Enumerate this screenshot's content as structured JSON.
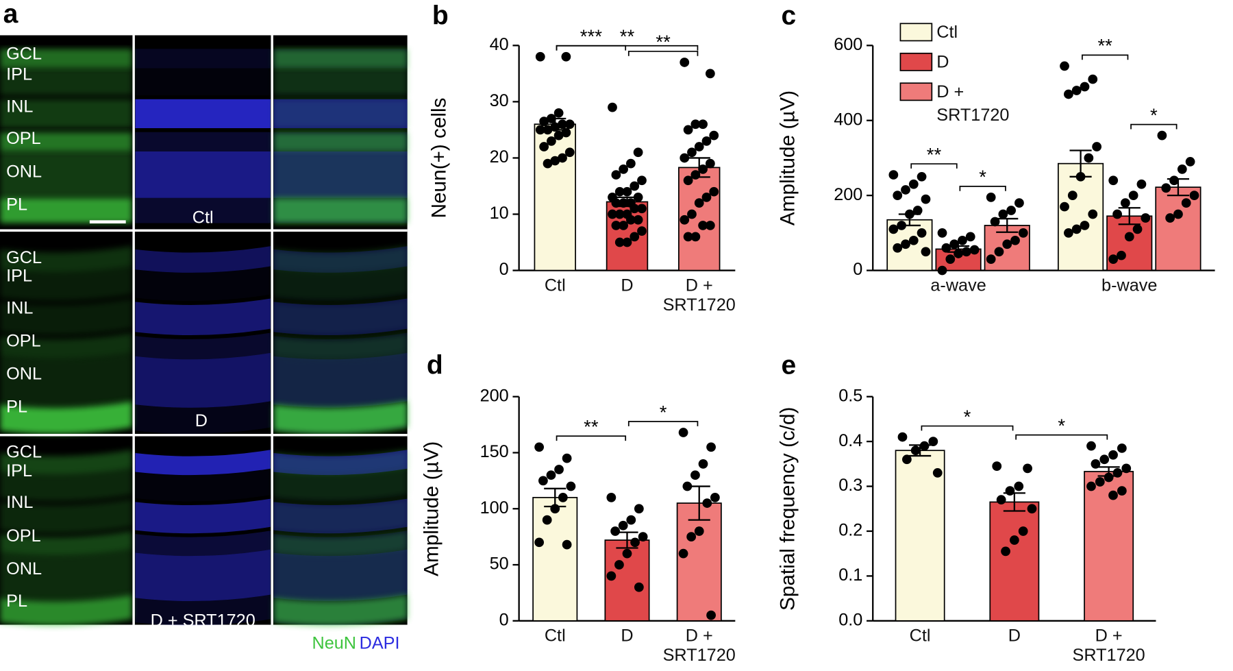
{
  "panel_a": {
    "letter": "a",
    "layers": [
      "GCL",
      "IPL",
      "INL",
      "OPL",
      "ONL",
      "PL"
    ],
    "conditions": [
      "Ctl",
      "D",
      "D + SRT1720"
    ],
    "stains": [
      "NeuN",
      "DAPI"
    ],
    "stain_colors": [
      "#3ec43e",
      "#2b2be0"
    ]
  },
  "chart_data": [
    {
      "type": "bar",
      "panel": "b",
      "ylabel": "Neun(+) cells",
      "categories": [
        "Ctl",
        "D",
        "D + SRT1720"
      ],
      "colors": [
        "#fbf8dc",
        "#e0484a",
        "#ef7b7a"
      ],
      "values": [
        26,
        12.2,
        18.3
      ],
      "errors": [
        1,
        0.8,
        1.7
      ],
      "points": [
        [
          38,
          38,
          28,
          27,
          26.5,
          26,
          26,
          25.5,
          25,
          25,
          24.5,
          24,
          23,
          22,
          21,
          20,
          19.5,
          19
        ],
        [
          29,
          21,
          19,
          18,
          17,
          16,
          15,
          14,
          14,
          13,
          13,
          12,
          12,
          12,
          11,
          11,
          10,
          10,
          10,
          9,
          9,
          8,
          8,
          7,
          6,
          5,
          5
        ],
        [
          37,
          35,
          26,
          26,
          25,
          24,
          23,
          22,
          21,
          20,
          19,
          18,
          17,
          16,
          14,
          13,
          12,
          10,
          9,
          8,
          8,
          6,
          6
        ]
      ],
      "ylim": [
        0,
        40
      ],
      "yticks": [
        0,
        10,
        20,
        30,
        40
      ],
      "annotations": [
        {
          "between": [
            "Ctl",
            "D"
          ],
          "label": "***"
        },
        {
          "between": [
            "D",
            "D + SRT1720"
          ],
          "label": "**"
        },
        {
          "between": [
            "Ctl",
            "D + SRT1720"
          ],
          "label": "**"
        }
      ]
    },
    {
      "type": "bar",
      "panel": "c",
      "ylabel": "Amplitude (µV)",
      "categories": [
        "a-wave",
        "b-wave"
      ],
      "series": [
        {
          "name": "Ctl",
          "color": "#fbf8dc",
          "values": [
            135,
            285
          ],
          "errors": [
            15,
            35
          ],
          "points": [
            [
              255,
              250,
              230,
              215,
              200,
              190,
              160,
              150,
              120,
              110,
              100,
              80,
              70,
              60,
              50
            ],
            [
              545,
              510,
              490,
              480,
              470,
              330,
              300,
              250,
              200,
              170,
              150,
              120,
              110,
              100
            ]
          ]
        },
        {
          "name": "D",
          "color": "#e0484a",
          "values": [
            57,
            145
          ],
          "errors": [
            8,
            22
          ],
          "points": [
            [
              100,
              90,
              80,
              70,
              60,
              55,
              50,
              45,
              30,
              0
            ],
            [
              240,
              230,
              200,
              180,
              150,
              140,
              110,
              90,
              40,
              30
            ]
          ]
        },
        {
          "name": "D + SRT1720",
          "color": "#ef7b7a",
          "values": [
            120,
            222
          ],
          "errors": [
            18,
            22
          ],
          "points": [
            [
              195,
              180,
              160,
              150,
              130,
              100,
              80,
              70,
              50,
              30
            ],
            [
              360,
              290,
              270,
              240,
              220,
              200,
              180,
              150,
              140
            ]
          ]
        }
      ],
      "ylim": [
        0,
        600
      ],
      "yticks": [
        0,
        200,
        400,
        600
      ],
      "annotations": [
        {
          "group": "a-wave",
          "between": [
            "Ctl",
            "D"
          ],
          "label": "**"
        },
        {
          "group": "a-wave",
          "between": [
            "D",
            "D + SRT1720"
          ],
          "label": "*"
        },
        {
          "group": "b-wave",
          "between": [
            "Ctl",
            "D"
          ],
          "label": "**"
        },
        {
          "group": "b-wave",
          "between": [
            "D",
            "D + SRT1720"
          ],
          "label": "*"
        }
      ]
    },
    {
      "type": "bar",
      "panel": "d",
      "ylabel": "Amplitude (µV)",
      "categories": [
        "Ctl",
        "D",
        "D + SRT1720"
      ],
      "colors": [
        "#fbf8dc",
        "#e0484a",
        "#ef7b7a"
      ],
      "values": [
        110,
        72,
        105
      ],
      "errors": [
        8,
        7,
        15
      ],
      "points": [
        [
          155,
          145,
          135,
          130,
          125,
          120,
          110,
          100,
          90,
          70,
          68
        ],
        [
          110,
          100,
          90,
          85,
          80,
          75,
          70,
          60,
          50,
          40,
          30
        ],
        [
          168,
          155,
          140,
          130,
          120,
          110,
          105,
          80,
          75,
          60,
          5
        ]
      ],
      "ylim": [
        0,
        200
      ],
      "yticks": [
        0,
        50,
        100,
        150,
        200
      ],
      "annotations": [
        {
          "between": [
            "Ctl",
            "D"
          ],
          "label": "**"
        },
        {
          "between": [
            "D",
            "D + SRT1720"
          ],
          "label": "*"
        }
      ]
    },
    {
      "type": "bar",
      "panel": "e",
      "ylabel": "Spatial frequency (c/d)",
      "categories": [
        "Ctl",
        "D",
        "D + SRT1720"
      ],
      "colors": [
        "#fbf8dc",
        "#e0484a",
        "#ef7b7a"
      ],
      "values": [
        0.38,
        0.265,
        0.333
      ],
      "errors": [
        0.012,
        0.02,
        0.01
      ],
      "points": [
        [
          0.41,
          0.4,
          0.39,
          0.38,
          0.36,
          0.33
        ],
        [
          0.345,
          0.34,
          0.3,
          0.29,
          0.27,
          0.25,
          0.2,
          0.18,
          0.155
        ],
        [
          0.39,
          0.385,
          0.37,
          0.36,
          0.35,
          0.34,
          0.33,
          0.32,
          0.31,
          0.3,
          0.29,
          0.28
        ]
      ],
      "ylim": [
        0,
        0.5
      ],
      "yticks": [
        {
          "value": 0,
          "label": "0.0"
        },
        0.1,
        0.2,
        0.3,
        0.4,
        0.5
      ],
      "annotations": [
        {
          "between": [
            "Ctl",
            "D"
          ],
          "label": "*"
        },
        {
          "between": [
            "D",
            "D + SRT1720"
          ],
          "label": "*"
        }
      ]
    }
  ]
}
